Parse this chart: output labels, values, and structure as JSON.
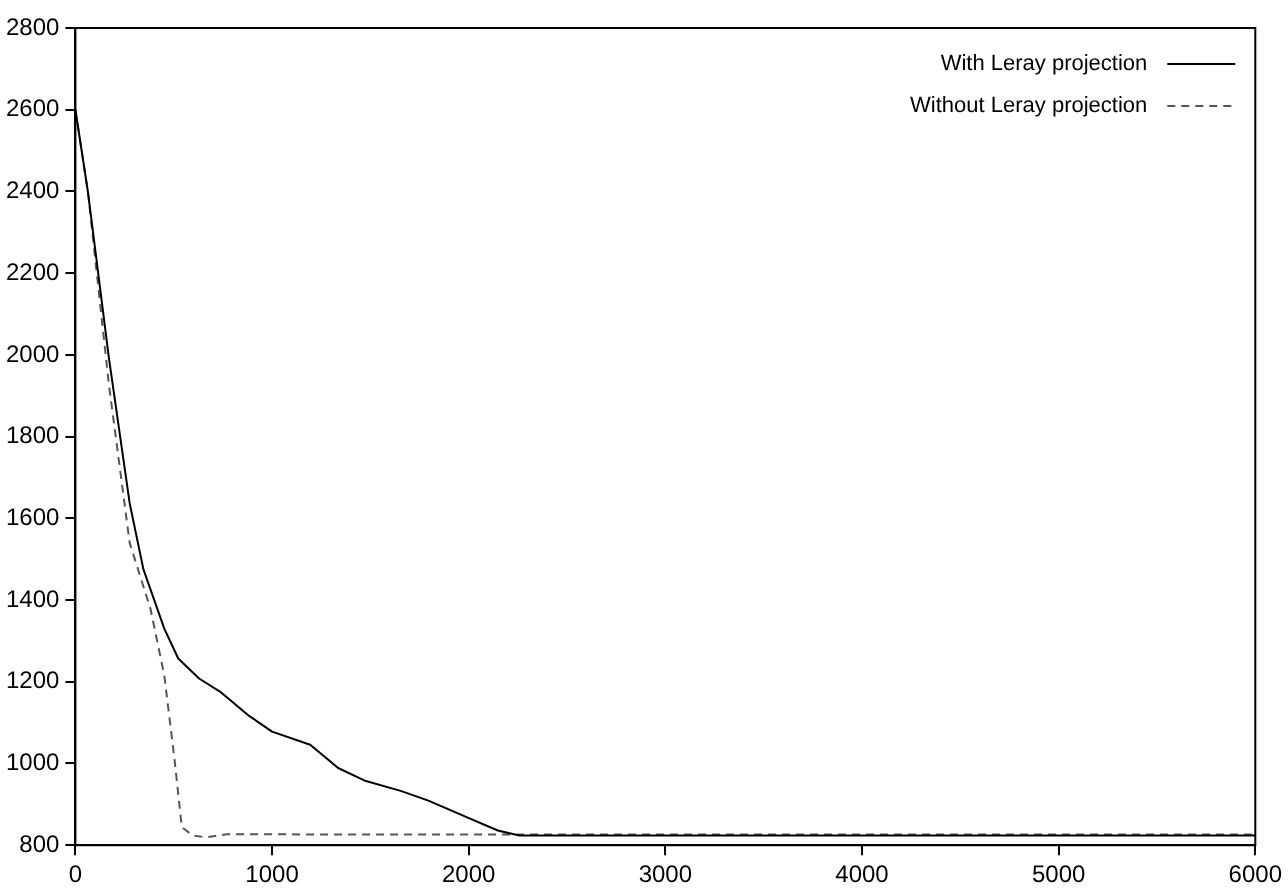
{
  "chart_data": {
    "type": "line",
    "xlim": [
      0,
      6000
    ],
    "xticks": [
      0,
      1000,
      2000,
      3000,
      4000,
      5000,
      6000
    ],
    "ylim": [
      800,
      2800
    ],
    "yticks": [
      800,
      1000,
      1200,
      1400,
      1600,
      1800,
      2000,
      2200,
      2400,
      2600,
      2800
    ],
    "grid": false,
    "legend": "top right",
    "marker": "none",
    "series": [
      {
        "name": "With Leray projection",
        "color": "#000000",
        "line_style": "solid",
        "x": [
          0,
          64,
          170,
          276,
          346,
          452,
          523,
          629,
          735,
          876,
          1000,
          1194,
          1336,
          1477,
          1654,
          1795,
          2007,
          2148,
          2254,
          3000,
          4000,
          5000,
          6000
        ],
        "values": [
          2600,
          2398,
          1994,
          1637,
          1475,
          1330,
          1257,
          1208,
          1176,
          1119,
          1078,
          1046,
          989,
          957,
          933,
          909,
          865,
          836,
          824,
          824,
          824,
          824,
          824
        ]
      },
      {
        "name": "Without Leray projection",
        "color": "#555555",
        "line_style": "dashed",
        "x": [
          0,
          64,
          170,
          276,
          382,
          452,
          505,
          541,
          597,
          664,
          770,
          1500,
          3000,
          4000,
          5000,
          6000
        ],
        "values": [
          2600,
          2398,
          1929,
          1540,
          1378,
          1216,
          1006,
          844,
          824,
          819,
          827,
          826,
          826,
          826,
          826,
          826
        ]
      }
    ]
  }
}
